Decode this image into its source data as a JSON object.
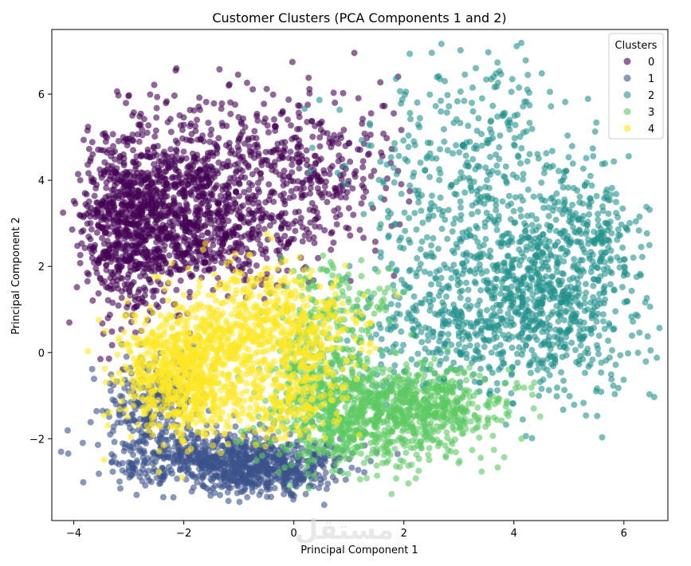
{
  "chart_data": {
    "type": "scatter",
    "title": "Customer Clusters (PCA Components 1 and 2)",
    "xlabel": "Principal Component 1",
    "ylabel": "Principal Component 2",
    "xlim": [
      -4.4,
      6.8
    ],
    "ylim": [
      -3.9,
      7.5
    ],
    "xticks": [
      -4,
      -2,
      0,
      2,
      4,
      6
    ],
    "yticks": [
      -2,
      0,
      2,
      4,
      6
    ],
    "tick_labels_x": [
      "−4",
      "−2",
      "0",
      "2",
      "4",
      "6"
    ],
    "tick_labels_y": [
      "−2",
      "0",
      "2",
      "4",
      "6"
    ],
    "grid": false,
    "marker_alpha": 0.6,
    "legend": {
      "title": "Clusters",
      "placement": "top-right",
      "entries": [
        "0",
        "1",
        "2",
        "3",
        "4"
      ]
    },
    "series": [
      {
        "name": "0",
        "color": "#440154",
        "regions": [
          {
            "cx": -3.0,
            "cy": 3.0,
            "sx": 0.45,
            "sy": 1.1,
            "n": 700
          },
          {
            "cx": -2.0,
            "cy": 3.6,
            "sx": 0.6,
            "sy": 0.9,
            "n": 450
          },
          {
            "cx": -0.8,
            "cy": 4.0,
            "sx": 0.8,
            "sy": 1.0,
            "n": 380
          },
          {
            "cx": 0.6,
            "cy": 4.2,
            "sx": 0.7,
            "sy": 1.0,
            "n": 200
          },
          {
            "cx": -1.4,
            "cy": 2.5,
            "sx": 0.8,
            "sy": 0.5,
            "n": 200
          }
        ]
      },
      {
        "name": "1",
        "color": "#3b528b",
        "regions": [
          {
            "cx": -1.2,
            "cy": -2.5,
            "sx": 0.9,
            "sy": 0.35,
            "n": 700
          },
          {
            "cx": -2.6,
            "cy": -1.3,
            "sx": 0.45,
            "sy": 0.6,
            "n": 250
          },
          {
            "cx": -0.3,
            "cy": -2.8,
            "sx": 0.5,
            "sy": 0.25,
            "n": 200
          }
        ]
      },
      {
        "name": "2",
        "color": "#21918c",
        "regions": [
          {
            "cx": 4.5,
            "cy": 1.0,
            "sx": 0.9,
            "sy": 1.0,
            "n": 700
          },
          {
            "cx": 3.2,
            "cy": 3.5,
            "sx": 1.1,
            "sy": 1.3,
            "n": 400
          },
          {
            "cx": 5.3,
            "cy": 2.8,
            "sx": 0.5,
            "sy": 0.8,
            "n": 200
          },
          {
            "cx": 2.5,
            "cy": 0.5,
            "sx": 0.8,
            "sy": 0.8,
            "n": 250
          },
          {
            "cx": 3.5,
            "cy": 5.8,
            "sx": 0.7,
            "sy": 0.6,
            "n": 60
          }
        ]
      },
      {
        "name": "3",
        "color": "#5ec962",
        "regions": [
          {
            "cx": 1.5,
            "cy": -1.5,
            "sx": 0.9,
            "sy": 0.6,
            "n": 700
          },
          {
            "cx": 0.5,
            "cy": -0.6,
            "sx": 0.6,
            "sy": 0.8,
            "n": 350
          },
          {
            "cx": 2.6,
            "cy": -1.2,
            "sx": 0.6,
            "sy": 0.4,
            "n": 250
          },
          {
            "cx": 0.8,
            "cy": 1.2,
            "sx": 0.5,
            "sy": 0.5,
            "n": 100
          }
        ]
      },
      {
        "name": "4",
        "color": "#fde725",
        "regions": [
          {
            "cx": -2.0,
            "cy": -0.5,
            "sx": 0.6,
            "sy": 0.7,
            "n": 800
          },
          {
            "cx": -0.8,
            "cy": 0.6,
            "sx": 0.7,
            "sy": 0.7,
            "n": 450
          },
          {
            "cx": 0.3,
            "cy": 0.3,
            "sx": 0.5,
            "sy": 0.6,
            "n": 200
          },
          {
            "cx": -0.2,
            "cy": -1.2,
            "sx": 0.5,
            "sy": 0.4,
            "n": 150
          }
        ]
      }
    ]
  },
  "watermark": "مستقل"
}
